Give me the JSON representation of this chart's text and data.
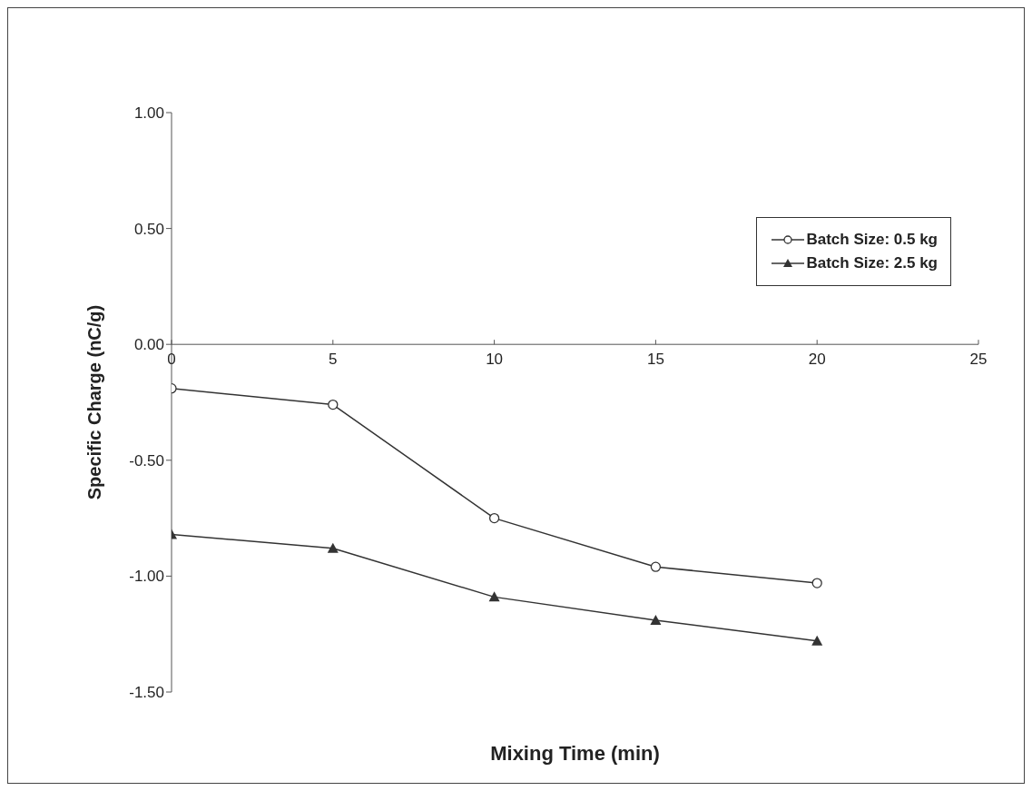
{
  "chart_data": {
    "type": "line",
    "xlabel": "Mixing Time (min)",
    "ylabel": "Specific Charge (nC/g)",
    "x": [
      0,
      5,
      10,
      15,
      20
    ],
    "series": [
      {
        "name": "Batch Size: 0.5 kg",
        "color": "#333333",
        "marker": "circle",
        "values": [
          -0.19,
          -0.26,
          -0.75,
          -0.96,
          -1.03
        ]
      },
      {
        "name": "Batch Size: 2.5 kg",
        "color": "#333333",
        "marker": "triangle",
        "values": [
          -0.82,
          -0.88,
          -1.09,
          -1.19,
          -1.28
        ]
      }
    ],
    "xlim": [
      0,
      25
    ],
    "xticks": [
      0,
      5,
      10,
      15,
      20,
      25
    ],
    "ylim": [
      -1.5,
      1
    ],
    "yticks": [
      {
        "value": 1,
        "label": "1.00"
      },
      {
        "value": 0.5,
        "label": "0.50"
      },
      {
        "value": 0,
        "label": "0.00"
      },
      {
        "value": -0.5,
        "label": "-0.50"
      },
      {
        "value": -1,
        "label": "-1.00"
      },
      {
        "value": -1.5,
        "label": "-1.50"
      }
    ],
    "grid": false,
    "legend": "top right"
  }
}
